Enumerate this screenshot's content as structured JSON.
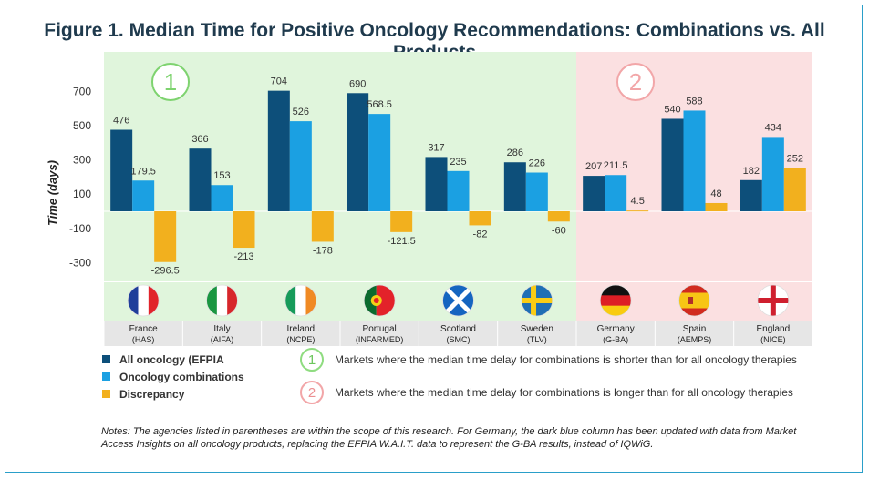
{
  "title": "Figure 1. Median Time for Positive Oncology Recommendations: Combinations vs. All Products",
  "chart_data": {
    "type": "bar",
    "ylabel": "Time (days)",
    "ylim": [
      -390,
      800
    ],
    "yticks": [
      700,
      500,
      300,
      100,
      -100,
      -300
    ],
    "categories": [
      "France",
      "Italy",
      "Ireland",
      "Portugal",
      "Scotland",
      "Sweden",
      "Germany",
      "Spain",
      "England"
    ],
    "agencies": [
      "(HAS)",
      "(AIFA)",
      "(NCPE)",
      "(INFARMED)",
      "(SMC)",
      "(TLV)",
      "(G-BA)",
      "(AEMPS)",
      "(NICE)"
    ],
    "series": [
      {
        "name": "All oncology (EFPIA",
        "color": "#0d4f7a",
        "values": [
          476,
          366,
          704,
          690,
          317,
          286,
          207,
          540,
          182
        ]
      },
      {
        "name": "Oncology combinations",
        "color": "#1ba0e2",
        "values": [
          179.5,
          153,
          526,
          568.5,
          235,
          226,
          211.5,
          588,
          434
        ]
      },
      {
        "name": "Discrepancy",
        "color": "#f2b01e",
        "values": [
          -296.5,
          -213,
          -178,
          -121.5,
          -82,
          -60,
          4.5,
          48,
          252
        ]
      }
    ],
    "labels": [
      [
        "476",
        "179.5",
        "-296.5"
      ],
      [
        "366",
        "153",
        "-213"
      ],
      [
        "704",
        "526",
        "-178"
      ],
      [
        "690",
        "568.5",
        "-121.5"
      ],
      [
        "317",
        "235",
        "-82"
      ],
      [
        "286",
        "226",
        "-60"
      ],
      [
        "207",
        "211.5",
        "4.5"
      ],
      [
        "540",
        "588",
        "48"
      ],
      [
        "182",
        "434",
        "252"
      ]
    ],
    "regions": [
      {
        "badge": "1",
        "color": "#e0f5dc",
        "accent": "#7ed36f",
        "count": 6
      },
      {
        "badge": "2",
        "color": "#fbe0e1",
        "accent": "#f2a6a8",
        "count": 3
      }
    ]
  },
  "flags": [
    "france",
    "italy",
    "ireland",
    "portugal",
    "scotland",
    "sweden",
    "germany",
    "spain",
    "england"
  ],
  "key": [
    {
      "badge": "1",
      "text": "Markets where the median time delay for combinations is shorter than for all oncology therapies"
    },
    {
      "badge": "2",
      "text": "Markets where the median time delay for combinations is longer than for all oncology therapies"
    }
  ],
  "notes": "Notes: The agencies listed in parentheses are within the scope of this research. For Germany, the dark blue column has been updated with data from Market Access Insights on all oncology products, replacing the EFPIA W.A.I.T. data to represent the G-BA results, instead of IQWiG."
}
